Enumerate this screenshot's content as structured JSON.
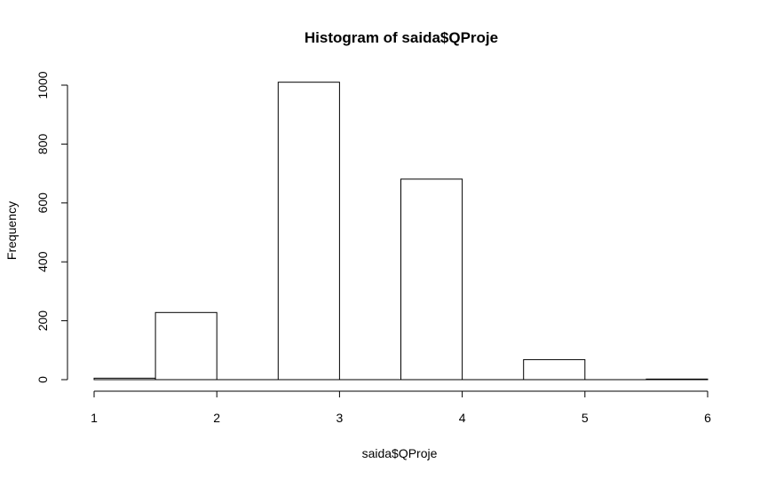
{
  "chart_data": {
    "type": "bar",
    "title": "Histogram of saida$QProje",
    "xlabel": "saida$QProje",
    "ylabel": "Frequency",
    "bins": [
      {
        "start": 1.0,
        "end": 1.5,
        "count": 5
      },
      {
        "start": 1.5,
        "end": 2.0,
        "count": 228
      },
      {
        "start": 2.0,
        "end": 2.5,
        "count": 0
      },
      {
        "start": 2.5,
        "end": 3.0,
        "count": 1010
      },
      {
        "start": 3.0,
        "end": 3.5,
        "count": 0
      },
      {
        "start": 3.5,
        "end": 4.0,
        "count": 681
      },
      {
        "start": 4.0,
        "end": 4.5,
        "count": 0
      },
      {
        "start": 4.5,
        "end": 5.0,
        "count": 68
      },
      {
        "start": 5.0,
        "end": 5.5,
        "count": 0
      },
      {
        "start": 5.5,
        "end": 6.0,
        "count": 2
      }
    ],
    "xlim": [
      1,
      6
    ],
    "ylim": [
      0,
      1000
    ],
    "xticks": [
      "1",
      "2",
      "3",
      "4",
      "5",
      "6"
    ],
    "yticks": [
      "0",
      "200",
      "400",
      "600",
      "800",
      "1000"
    ],
    "grid": false,
    "colors": {
      "bar_fill": "#ffffff",
      "bar_stroke": "#000000"
    }
  }
}
